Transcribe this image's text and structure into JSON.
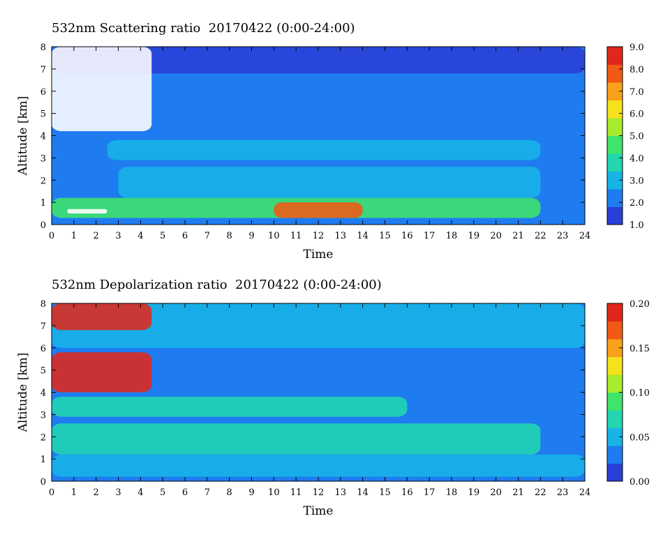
{
  "chart_data": [
    {
      "type": "heatmap",
      "title": "532nm Scattering ratio  20170422 (0:00-24:00)",
      "xlabel": "Time",
      "ylabel": "Altitude [km]",
      "xlim": [
        0,
        24
      ],
      "ylim": [
        0,
        8
      ],
      "x_ticks": [
        "0",
        "1",
        "2",
        "3",
        "4",
        "5",
        "6",
        "7",
        "8",
        "9",
        "10",
        "11",
        "12",
        "13",
        "14",
        "15",
        "16",
        "17",
        "18",
        "19",
        "20",
        "21",
        "22",
        "23",
        "24"
      ],
      "y_ticks": [
        "0",
        "1",
        "2",
        "3",
        "4",
        "5",
        "6",
        "7",
        "8"
      ],
      "colorbar": {
        "min": 1.0,
        "max": 9.0,
        "ticks": [
          "1.0",
          "2.0",
          "3.0",
          "4.0",
          "5.0",
          "6.0",
          "7.0",
          "8.0",
          "9.0"
        ],
        "colors": [
          "#2a3fd6",
          "#1e7cf0",
          "#18b4e6",
          "#22d6b0",
          "#3fe46a",
          "#a8ea2e",
          "#f5e21c",
          "#f7a21a",
          "#f05a14",
          "#e0281a"
        ]
      },
      "layers": [
        {
          "feature": "background",
          "x": [
            0,
            24
          ],
          "y": [
            0,
            8
          ],
          "value": 2.0
        },
        {
          "feature": "upper aerosol layer",
          "x": [
            0,
            24
          ],
          "y": [
            6.8,
            8
          ],
          "value": 1.7
        },
        {
          "feature": "layer 3-3.8 km",
          "x": [
            2.5,
            22
          ],
          "y": [
            2.9,
            3.8
          ],
          "value": 2.8
        },
        {
          "feature": "layer 1.2-2.6 km",
          "x": [
            3,
            22
          ],
          "y": [
            1.2,
            2.6
          ],
          "value": 3.3
        },
        {
          "feature": "boundary layer 0.3-1.2 km",
          "x": [
            0,
            22
          ],
          "y": [
            0.3,
            1.2
          ],
          "value": 4.6
        },
        {
          "feature": "dense aerosol 0.3-1.0 km",
          "x": [
            10,
            14
          ],
          "y": [
            0.3,
            1.0
          ],
          "value": 7.5
        },
        {
          "feature": "cloud (saturated)",
          "x": [
            0,
            4.5
          ],
          "y": [
            4.2,
            8
          ],
          "value": 9.0
        },
        {
          "feature": "cloud (saturated)",
          "x": [
            0.7,
            2.5
          ],
          "y": [
            0.5,
            0.7
          ],
          "value": 9.0
        }
      ]
    },
    {
      "type": "heatmap",
      "title": "532nm Depolarization ratio  20170422 (0:00-24:00)",
      "xlabel": "Time",
      "ylabel": "Altitude [km]",
      "xlim": [
        0,
        24
      ],
      "ylim": [
        0,
        8
      ],
      "x_ticks": [
        "0",
        "1",
        "2",
        "3",
        "4",
        "5",
        "6",
        "7",
        "8",
        "9",
        "10",
        "11",
        "12",
        "13",
        "14",
        "15",
        "16",
        "17",
        "18",
        "19",
        "20",
        "21",
        "22",
        "23",
        "24"
      ],
      "y_ticks": [
        "0",
        "1",
        "2",
        "3",
        "4",
        "5",
        "6",
        "7",
        "8"
      ],
      "colorbar": {
        "min": 0.0,
        "max": 0.2,
        "ticks": [
          "0.00",
          "0.05",
          "0.10",
          "0.15",
          "0.20"
        ],
        "colors": [
          "#2a3fd6",
          "#1e7cf0",
          "#18b4e6",
          "#22d6b0",
          "#3fe46a",
          "#a8ea2e",
          "#f5e21c",
          "#f7a21a",
          "#f05a14",
          "#e0281a"
        ]
      },
      "layers": [
        {
          "feature": "background",
          "x": [
            0,
            24
          ],
          "y": [
            0,
            8
          ],
          "value": 0.035
        },
        {
          "feature": "upper layer",
          "x": [
            0,
            24
          ],
          "y": [
            6.0,
            8
          ],
          "value": 0.05
        },
        {
          "feature": "layer 3-3.8 km",
          "x": [
            0,
            16
          ],
          "y": [
            2.9,
            3.8
          ],
          "value": 0.08
        },
        {
          "feature": "layer 1.2-2.6 km",
          "x": [
            0,
            22
          ],
          "y": [
            1.2,
            2.6
          ],
          "value": 0.06
        },
        {
          "feature": "near-surface layer",
          "x": [
            0,
            24
          ],
          "y": [
            0.2,
            1.2
          ],
          "value": 0.055
        },
        {
          "feature": "ice cloud",
          "x": [
            0,
            4.5
          ],
          "y": [
            4.0,
            5.8
          ],
          "value": 0.19
        },
        {
          "feature": "ice cloud",
          "x": [
            0,
            4.5
          ],
          "y": [
            6.8,
            8
          ],
          "value": 0.18
        }
      ]
    }
  ]
}
